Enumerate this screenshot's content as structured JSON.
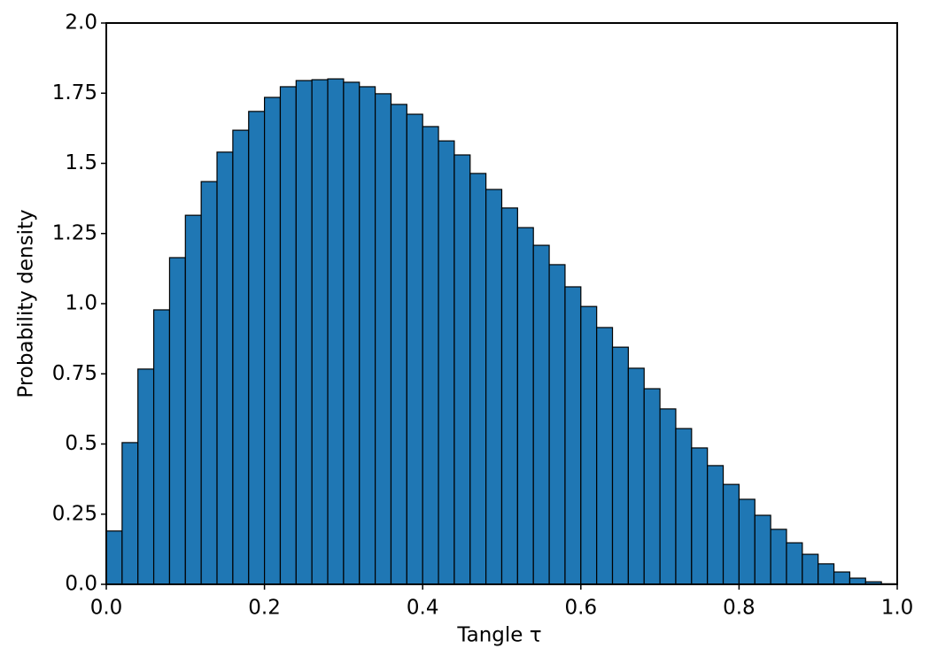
{
  "chart_data": {
    "type": "histogram",
    "xlabel": "Tangle τ",
    "ylabel": "Probability density",
    "color": "#1f77b4",
    "edgecolor": "#000000",
    "bins": [
      0,
      0.02,
      0.04,
      0.06,
      0.08,
      0.1,
      0.12,
      0.14,
      0.16,
      0.18,
      0.2,
      0.22,
      0.24,
      0.26,
      0.28,
      0.3,
      0.32,
      0.34,
      0.36,
      0.38,
      0.4,
      0.42,
      0.44,
      0.46,
      0.48,
      0.5,
      0.52,
      0.54,
      0.56,
      0.58,
      0.6,
      0.62,
      0.64,
      0.66,
      0.68,
      0.7,
      0.72,
      0.74,
      0.76,
      0.78,
      0.8,
      0.82,
      0.84,
      0.86,
      0.88,
      0.9,
      0.92,
      0.94,
      0.96,
      0.98,
      1.0
    ],
    "values": [
      0.19,
      0.505,
      0.767,
      0.978,
      1.164,
      1.315,
      1.435,
      1.54,
      1.618,
      1.685,
      1.735,
      1.773,
      1.795,
      1.798,
      1.801,
      1.789,
      1.773,
      1.748,
      1.71,
      1.675,
      1.631,
      1.58,
      1.53,
      1.464,
      1.407,
      1.341,
      1.271,
      1.208,
      1.139,
      1.06,
      0.99,
      0.915,
      0.845,
      0.77,
      0.697,
      0.625,
      0.555,
      0.486,
      0.423,
      0.356,
      0.303,
      0.246,
      0.196,
      0.148,
      0.107,
      0.073,
      0.044,
      0.022,
      0.009,
      0.002
    ],
    "xlim": [
      0,
      1
    ],
    "xticks": [
      {
        "value": 0,
        "label": "0.0"
      },
      0.2,
      0.4,
      0.6,
      0.8,
      {
        "value": 1,
        "label": "1.0"
      }
    ],
    "ylim": [
      0,
      2
    ],
    "yticks": [
      {
        "value": 0,
        "label": "0.0"
      },
      0.25,
      0.5,
      0.75,
      {
        "value": 1,
        "label": "1.0"
      },
      1.25,
      1.5,
      1.75,
      {
        "value": 2,
        "label": "2.0"
      }
    ],
    "grid": false
  }
}
